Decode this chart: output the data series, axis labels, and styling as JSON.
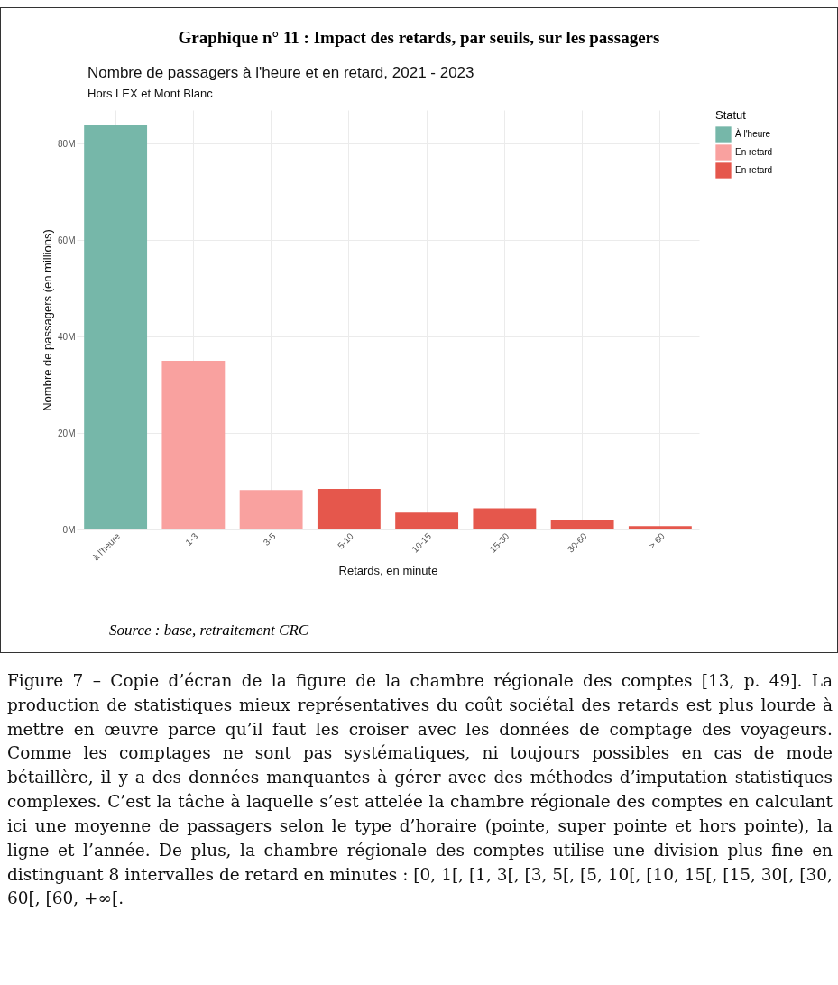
{
  "chart_data": {
    "type": "bar",
    "title": "Graphique n° 11 : Impact des retards, par seuils, sur les passagers",
    "subtitle": "Nombre de passagers à l'heure et en retard, 2021 - 2023",
    "xlabel": "Retards, en minute",
    "ylabel": "Nombre de passagers (en millions)",
    "legend_title": "Statut",
    "legend": "right",
    "grid": true,
    "categories": [
      "à l'heure",
      "1-3",
      "3-5",
      "5-10",
      "10-15",
      "15-30",
      "30-60",
      "> 60"
    ],
    "series": [
      {
        "name": "À l'heure",
        "color": "#76b7a9",
        "values": [
          83.8,
          null,
          null,
          null,
          null,
          null,
          null,
          null
        ]
      },
      {
        "name": "En retard",
        "color": "#f9a19f",
        "values": [
          null,
          35.0,
          8.2,
          null,
          null,
          null,
          null,
          null
        ]
      },
      {
        "name": "En retard",
        "color": "#e5574c",
        "values": [
          null,
          null,
          null,
          8.4,
          3.5,
          4.4,
          2.0,
          0.7
        ]
      }
    ],
    "ylim": [
      0,
      87
    ],
    "yticks": [
      {
        "value": 0,
        "label": "0M"
      },
      {
        "value": 20,
        "label": "20M"
      },
      {
        "value": 40,
        "label": "40M"
      },
      {
        "value": 60,
        "label": "60M"
      },
      {
        "value": 80,
        "label": "80M"
      }
    ],
    "annotations": [
      "Hors LEX et Mont Blanc",
      "Source : base, retraitement CRC",
      "Figure 7 – Copie d’écran de la figure de la chambre régionale des comptes [13, p. 49]. La production de statistiques mieux représentatives du coût sociétal des retards est plus lourde à mettre en œuvre parce qu’il faut les croiser avec les données de comptage des voyageurs. Comme les comptages ne sont pas systématiques, ni toujours possibles en cas de mode bétaillère, il y a des données manquantes à gérer avec des méthodes d’imputation statistiques complexes. C’est la tâche à laquelle s’est attelée la chambre régionale des comptes en calculant ici une moyenne de passagers selon le type d’horaire (pointe, super pointe et hors pointe), la ligne et l’année. De plus, la chambre régionale des comptes utilise une division plus fine en distinguant 8 intervalles de retard en minutes : [0, 1[, [1, 3[, [3, 5[, [5, 10[, [10, 15[, [15, 30[, [30, 60[, [60, +∞[."
    ]
  }
}
